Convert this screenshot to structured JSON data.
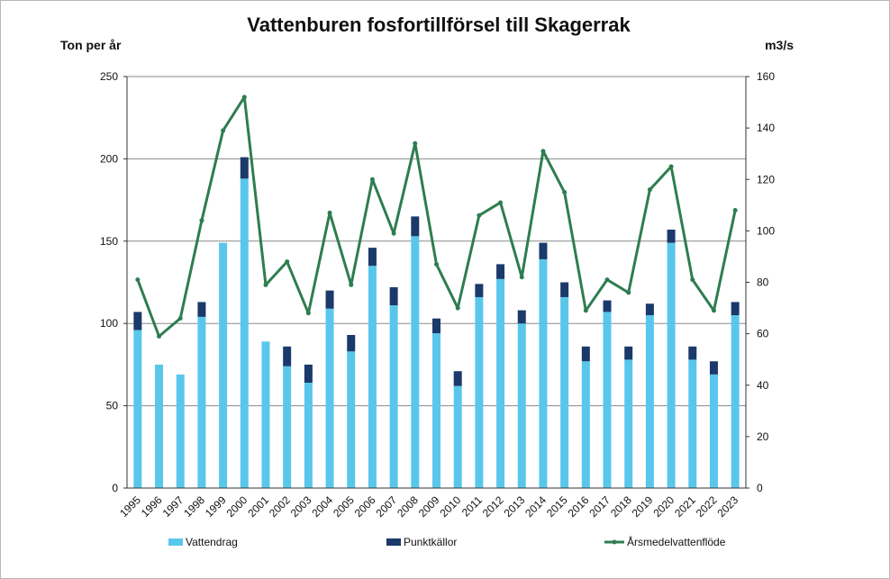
{
  "chart_data": {
    "type": "bar",
    "title": "Vattenburen fosfortillförsel till Skagerrak",
    "ylabel_left": "Ton per år",
    "ylabel_right": "m3/s",
    "ylim_left": [
      0,
      250
    ],
    "ylim_right": [
      0,
      160
    ],
    "yticks_left": [
      "0",
      "50",
      "100",
      "150",
      "200",
      "250"
    ],
    "yticks_right": [
      "0",
      "20",
      "40",
      "60",
      "80",
      "100",
      "120",
      "140",
      "160"
    ],
    "grid": true,
    "stacked": true,
    "legend_position": "bottom",
    "categories": [
      "1995",
      "1996",
      "1997",
      "1998",
      "1999",
      "2000",
      "2001",
      "2002",
      "2003",
      "2004",
      "2005",
      "2006",
      "2007",
      "2008",
      "2009",
      "2010",
      "2011",
      "2012",
      "2013",
      "2014",
      "2015",
      "2016",
      "2017",
      "2018",
      "2019",
      "2020",
      "2021",
      "2022",
      "2023"
    ],
    "series": [
      {
        "name": "Vattendrag",
        "type": "bar",
        "axis": "left",
        "color": "#59c7ec",
        "values": [
          96,
          75,
          69,
          104,
          149,
          188,
          89,
          74,
          64,
          109,
          83,
          135,
          111,
          153,
          94,
          62,
          116,
          127,
          100,
          139,
          116,
          77,
          107,
          78,
          105,
          149,
          78,
          69,
          105
        ]
      },
      {
        "name": "Punktkällor",
        "type": "bar",
        "axis": "left",
        "color": "#1b3a6b",
        "values": [
          11,
          0,
          0,
          9,
          0,
          13,
          0,
          12,
          11,
          11,
          10,
          11,
          11,
          12,
          9,
          9,
          8,
          9,
          8,
          10,
          9,
          9,
          7,
          8,
          7,
          8,
          8,
          8,
          8
        ]
      },
      {
        "name": "Årsmedelvattenflöde",
        "type": "line",
        "axis": "right",
        "color": "#2e7d4f",
        "values": [
          81,
          59,
          66,
          104,
          139,
          152,
          79,
          88,
          68,
          107,
          79,
          120,
          99,
          134,
          87,
          70,
          106,
          111,
          82,
          131,
          115,
          69,
          81,
          76,
          116,
          125,
          81,
          69,
          108
        ]
      }
    ]
  }
}
